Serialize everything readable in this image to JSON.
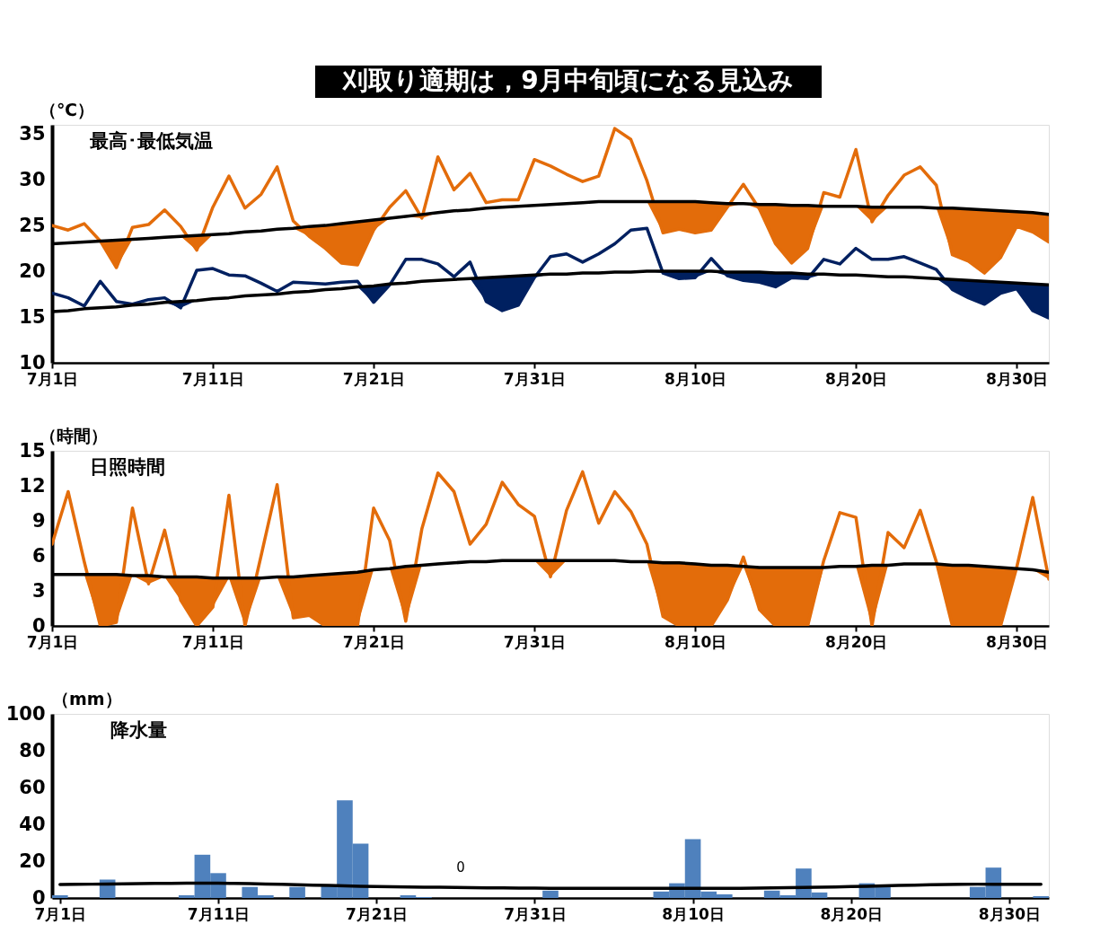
{
  "chart_data": [
    {
      "type": "line",
      "title": "刈取り適期は，9月中旬頃になる見込み",
      "subtitle": "最高･最低気温",
      "ylabel": "（℃）",
      "categories": [
        "7月1日",
        null,
        null,
        null,
        null,
        null,
        null,
        null,
        null,
        null,
        "7月11日",
        null,
        null,
        null,
        null,
        null,
        null,
        null,
        null,
        null,
        "7月21日",
        null,
        null,
        null,
        null,
        null,
        null,
        null,
        null,
        null,
        "7月31日",
        null,
        null,
        null,
        null,
        null,
        null,
        null,
        null,
        null,
        "8月10日",
        null,
        null,
        null,
        null,
        null,
        null,
        null,
        null,
        null,
        "8月20日",
        null,
        null,
        null,
        null,
        null,
        null,
        null,
        null,
        null,
        "8月30日",
        null,
        null
      ],
      "series": [
        {
          "color": "#e36c0a",
          "values": [
            25.0,
            24.5,
            25.2,
            23.3,
            20.4,
            24.8,
            25.1,
            26.7,
            24.9,
            22.3,
            27.0,
            30.4,
            26.9,
            28.4,
            31.4,
            25.5,
            23.8,
            22.5,
            20.9,
            20.7,
            24.5,
            27.0,
            28.8,
            25.8,
            32.5,
            28.9,
            30.7,
            27.5,
            27.8,
            27.8,
            32.2,
            31.5,
            30.6,
            29.8,
            30.4,
            35.6,
            34.4,
            29.9,
            24.2,
            24.6,
            24.2,
            24.5,
            27.0,
            29.5,
            26.8,
            23.0,
            20.9,
            22.5,
            28.6,
            28.1,
            33.3,
            25.4,
            28.3,
            30.5,
            31.4,
            29.4,
            21.8,
            21.1,
            19.8,
            21.5,
            24.9,
            24.3,
            23.2
          ],
          "lower": [
            23.0,
            23.1,
            23.2,
            23.3,
            20.4,
            23.5,
            23.6,
            23.7,
            23.8,
            22.3,
            24.0,
            24.1,
            24.3,
            24.4,
            24.6,
            24.7,
            23.8,
            22.5,
            20.9,
            20.7,
            24.5,
            25.8,
            26.0,
            25.8,
            26.4,
            26.6,
            26.7,
            26.9,
            27.0,
            27.1,
            27.2,
            27.3,
            27.4,
            27.5,
            27.6,
            27.6,
            27.6,
            27.6,
            24.2,
            24.6,
            24.2,
            24.5,
            27.0,
            27.4,
            26.8,
            23.0,
            20.9,
            22.5,
            27.1,
            27.1,
            27.1,
            25.4,
            27.0,
            27.0,
            27.0,
            26.9,
            21.8,
            21.1,
            19.8,
            21.5,
            24.9,
            24.3,
            23.2
          ],
          "upper": [
            23.0,
            23.1,
            23.2,
            23.3,
            23.4,
            23.5,
            23.6,
            23.7,
            23.8,
            23.9,
            24.0,
            24.1,
            24.3,
            24.4,
            24.6,
            24.7,
            24.9,
            25.0,
            25.2,
            25.4,
            25.6,
            25.8,
            26.0,
            26.2,
            26.4,
            26.6,
            26.7,
            26.9,
            27.0,
            27.1,
            27.2,
            27.3,
            27.4,
            27.5,
            27.6,
            27.6,
            27.6,
            27.6,
            27.6,
            27.6,
            27.6,
            27.5,
            27.4,
            27.4,
            27.3,
            27.3,
            27.2,
            27.2,
            27.1,
            27.1,
            27.1,
            27.0,
            27.0,
            27.0,
            27.0,
            26.9,
            26.9,
            26.8,
            26.7,
            26.6,
            26.5,
            26.4,
            26.2
          ]
        },
        {
          "color": "#000000",
          "values": [
            23.0,
            23.1,
            23.2,
            23.3,
            23.4,
            23.5,
            23.6,
            23.7,
            23.8,
            23.9,
            24.0,
            24.1,
            24.3,
            24.4,
            24.6,
            24.7,
            24.9,
            25.0,
            25.2,
            25.4,
            25.6,
            25.8,
            26.0,
            26.2,
            26.4,
            26.6,
            26.7,
            26.9,
            27.0,
            27.1,
            27.2,
            27.3,
            27.4,
            27.5,
            27.6,
            27.6,
            27.6,
            27.6,
            27.6,
            27.6,
            27.6,
            27.5,
            27.4,
            27.4,
            27.3,
            27.3,
            27.2,
            27.2,
            27.1,
            27.1,
            27.1,
            27.0,
            27.0,
            27.0,
            27.0,
            26.9,
            26.9,
            26.8,
            26.7,
            26.6,
            26.5,
            26.4,
            26.2
          ]
        },
        {
          "color": "#002060",
          "values": [
            17.6,
            17.1,
            16.2,
            18.9,
            16.7,
            16.4,
            16.9,
            17.1,
            16.0,
            20.1,
            20.3,
            19.6,
            19.5,
            18.7,
            17.8,
            18.8,
            18.7,
            18.6,
            18.8,
            18.9,
            16.6,
            18.5,
            21.3,
            21.3,
            20.8,
            19.4,
            21.0,
            16.7,
            15.7,
            16.3,
            19.3,
            21.6,
            21.9,
            21.0,
            21.9,
            23.0,
            24.5,
            24.7,
            19.8,
            19.2,
            19.3,
            21.4,
            19.5,
            19.0,
            18.8,
            18.3,
            19.3,
            19.2,
            21.3,
            20.8,
            22.5,
            21.3,
            21.3,
            21.6,
            20.9,
            20.2,
            18.0,
            17.1,
            16.4,
            17.6,
            18.1,
            15.7,
            14.9
          ],
          "lower": [
            15.6,
            15.7,
            15.9,
            16.0,
            16.1,
            16.3,
            16.4,
            16.6,
            16.0,
            16.8,
            17.0,
            17.1,
            17.3,
            17.4,
            17.5,
            17.7,
            17.8,
            18.0,
            18.1,
            18.3,
            16.6,
            18.5,
            18.7,
            18.9,
            19.0,
            19.1,
            19.2,
            16.7,
            15.7,
            16.3,
            19.3,
            19.7,
            19.7,
            19.8,
            19.8,
            19.9,
            19.9,
            20.0,
            19.8,
            19.2,
            19.3,
            20.0,
            19.5,
            19.0,
            18.8,
            18.3,
            19.3,
            19.2,
            19.7,
            19.6,
            19.6,
            19.5,
            19.4,
            19.4,
            19.3,
            19.2,
            18.0,
            17.1,
            16.4,
            17.6,
            18.1,
            15.7,
            14.9
          ],
          "upper": [
            15.6,
            15.7,
            15.9,
            16.0,
            16.1,
            16.3,
            16.4,
            16.6,
            16.7,
            16.8,
            17.0,
            17.1,
            17.3,
            17.4,
            17.5,
            17.7,
            17.8,
            18.0,
            18.1,
            18.3,
            18.4,
            18.6,
            18.7,
            18.9,
            19.0,
            19.1,
            19.2,
            19.3,
            19.4,
            19.5,
            19.6,
            19.7,
            19.7,
            19.8,
            19.8,
            19.9,
            19.9,
            20.0,
            20.0,
            20.0,
            20.0,
            20.0,
            19.9,
            19.9,
            19.9,
            19.8,
            19.8,
            19.7,
            19.7,
            19.6,
            19.6,
            19.5,
            19.4,
            19.4,
            19.3,
            19.2,
            19.1,
            19.0,
            18.9,
            18.8,
            18.7,
            18.6,
            18.5
          ]
        },
        {
          "color": "#000000",
          "values": [
            15.6,
            15.7,
            15.9,
            16.0,
            16.1,
            16.3,
            16.4,
            16.6,
            16.7,
            16.8,
            17.0,
            17.1,
            17.3,
            17.4,
            17.5,
            17.7,
            17.8,
            18.0,
            18.1,
            18.3,
            18.4,
            18.6,
            18.7,
            18.9,
            19.0,
            19.1,
            19.2,
            19.3,
            19.4,
            19.5,
            19.6,
            19.7,
            19.7,
            19.8,
            19.8,
            19.9,
            19.9,
            20.0,
            20.0,
            20.0,
            20.0,
            20.0,
            19.9,
            19.9,
            19.9,
            19.8,
            19.8,
            19.7,
            19.7,
            19.6,
            19.6,
            19.5,
            19.4,
            19.4,
            19.3,
            19.2,
            19.1,
            19.0,
            18.9,
            18.8,
            18.7,
            18.6,
            18.5
          ]
        }
      ],
      "ylim": [
        10,
        36
      ],
      "yticks": [
        10,
        15,
        20,
        25,
        30,
        35
      ],
      "grid": false,
      "marker": "none",
      "line_style": "solid"
    },
    {
      "type": "line",
      "title": "日照時間",
      "ylabel": "（時間）",
      "categories": [
        "7月1日",
        null,
        null,
        null,
        null,
        null,
        null,
        null,
        null,
        null,
        "7月11日",
        null,
        null,
        null,
        null,
        null,
        null,
        null,
        null,
        null,
        "7月21日",
        null,
        null,
        null,
        null,
        null,
        null,
        null,
        null,
        null,
        "7月31日",
        null,
        null,
        null,
        null,
        null,
        null,
        null,
        null,
        null,
        "8月10日",
        null,
        null,
        null,
        null,
        null,
        null,
        null,
        null,
        null,
        "8月20日",
        null,
        null,
        null,
        null,
        null,
        null,
        null,
        null,
        null,
        "8月30日",
        null,
        null
      ],
      "series": [
        {
          "color": "#e36c0a",
          "values": [
            7.0,
            11.5,
            5.5,
            0.0,
            0.3,
            10.1,
            3.6,
            8.2,
            2.2,
            0.0,
            1.6,
            11.2,
            0.0,
            6.0,
            12.1,
            0.7,
            0.9,
            0.0,
            0.0,
            0.0,
            10.1,
            7.3,
            0.4,
            8.3,
            13.1,
            11.5,
            7.0,
            8.7,
            12.3,
            10.4,
            9.4,
            4.2,
            9.9,
            13.2,
            8.8,
            11.5,
            9.8,
            7.0,
            0.8,
            0.0,
            0.0,
            0.0,
            2.2,
            5.9,
            1.4,
            0.0,
            0.0,
            0.0,
            5.6,
            9.7,
            9.3,
            0.0,
            8.0,
            6.7,
            9.9,
            5.5,
            0.0,
            0.0,
            0.0,
            0.0,
            5.0,
            11.0,
            4.0
          ],
          "lower": [
            4.4,
            4.4,
            4.4,
            0.0,
            0.3,
            4.3,
            3.6,
            4.2,
            2.2,
            0.0,
            1.6,
            4.1,
            0.0,
            4.1,
            4.2,
            0.7,
            0.9,
            0.0,
            0.0,
            0.0,
            4.8,
            4.9,
            0.4,
            5.2,
            5.3,
            5.4,
            5.5,
            5.5,
            5.6,
            5.6,
            5.6,
            4.2,
            5.6,
            5.6,
            5.6,
            5.6,
            5.5,
            5.5,
            0.8,
            0.0,
            0.0,
            0.0,
            2.2,
            5.1,
            1.4,
            0.0,
            0.0,
            0.0,
            5.0,
            5.1,
            5.1,
            0.0,
            5.2,
            5.3,
            5.3,
            5.3,
            0.0,
            0.0,
            0.0,
            0.0,
            4.9,
            4.8,
            4.0
          ],
          "upper": [
            4.4,
            4.4,
            4.4,
            4.4,
            4.4,
            4.3,
            4.3,
            4.2,
            4.2,
            4.2,
            4.1,
            4.1,
            4.1,
            4.1,
            4.2,
            4.2,
            4.3,
            4.4,
            4.5,
            4.6,
            4.8,
            4.9,
            5.1,
            5.2,
            5.3,
            5.4,
            5.5,
            5.5,
            5.6,
            5.6,
            5.6,
            5.6,
            5.6,
            5.6,
            5.6,
            5.6,
            5.5,
            5.5,
            5.4,
            5.4,
            5.3,
            5.2,
            5.2,
            5.1,
            5.0,
            5.0,
            5.0,
            5.0,
            5.0,
            5.1,
            5.1,
            5.2,
            5.2,
            5.3,
            5.3,
            5.3,
            5.2,
            5.2,
            5.1,
            5.0,
            4.9,
            4.8,
            4.6
          ]
        },
        {
          "color": "#000000",
          "values": [
            4.4,
            4.4,
            4.4,
            4.4,
            4.4,
            4.3,
            4.3,
            4.2,
            4.2,
            4.2,
            4.1,
            4.1,
            4.1,
            4.1,
            4.2,
            4.2,
            4.3,
            4.4,
            4.5,
            4.6,
            4.8,
            4.9,
            5.1,
            5.2,
            5.3,
            5.4,
            5.5,
            5.5,
            5.6,
            5.6,
            5.6,
            5.6,
            5.6,
            5.6,
            5.6,
            5.6,
            5.5,
            5.5,
            5.4,
            5.4,
            5.3,
            5.2,
            5.2,
            5.1,
            5.0,
            5.0,
            5.0,
            5.0,
            5.0,
            5.1,
            5.1,
            5.2,
            5.2,
            5.3,
            5.3,
            5.3,
            5.2,
            5.2,
            5.1,
            5.0,
            4.9,
            4.8,
            4.6
          ]
        }
      ],
      "ylim": [
        0,
        15
      ],
      "yticks": [
        0,
        3,
        6,
        9,
        12,
        15
      ],
      "grid": false,
      "marker": "none",
      "line_style": "solid"
    },
    {
      "type": "bar",
      "title": "降水量",
      "ylabel": "（mm）",
      "annotations": [
        "0"
      ],
      "categories": [
        "7月1日",
        null,
        null,
        null,
        null,
        null,
        null,
        null,
        null,
        null,
        "7月11日",
        null,
        null,
        null,
        null,
        null,
        null,
        null,
        null,
        null,
        "7月21日",
        null,
        null,
        null,
        null,
        null,
        null,
        null,
        null,
        null,
        "7月31日",
        null,
        null,
        null,
        null,
        null,
        null,
        null,
        null,
        null,
        "8月10日",
        null,
        null,
        null,
        null,
        null,
        null,
        null,
        null,
        null,
        "8月20日",
        null,
        null,
        null,
        null,
        null,
        null,
        null,
        null,
        null,
        "8月30日",
        null,
        null
      ],
      "series": [
        {
          "color": "#4f81bd",
          "values": [
            1.5,
            0,
            0,
            10,
            0,
            0,
            0,
            0,
            1.5,
            23.5,
            13.5,
            0,
            6,
            1.5,
            0,
            6,
            0,
            7,
            53,
            29.5,
            0,
            0,
            1.5,
            0.5,
            0,
            0,
            0,
            0,
            0,
            0,
            0,
            4,
            0,
            0,
            0,
            0,
            0,
            0,
            3.5,
            8,
            32,
            3.5,
            2,
            0,
            0,
            4,
            1.5,
            16,
            3,
            0,
            0,
            8,
            7,
            0,
            0,
            0,
            0,
            0,
            6,
            16.5,
            0,
            0,
            1
          ]
        },
        {
          "type": "line",
          "color": "#000000",
          "values": [
            7.3,
            7.4,
            7.5,
            7.6,
            7.7,
            7.8,
            7.9,
            7.9,
            8.0,
            8.0,
            8.0,
            7.9,
            7.8,
            7.6,
            7.4,
            7.2,
            7.0,
            6.8,
            6.6,
            6.4,
            6.2,
            6.1,
            6.0,
            5.9,
            5.8,
            5.7,
            5.6,
            5.5,
            5.5,
            5.4,
            5.4,
            5.3,
            5.2,
            5.2,
            5.2,
            5.2,
            5.2,
            5.2,
            5.2,
            5.2,
            5.3,
            5.3,
            5.3,
            5.3,
            5.4,
            5.5,
            5.6,
            5.7,
            5.9,
            6.0,
            6.2,
            6.4,
            6.6,
            6.8,
            7.0,
            7.2,
            7.3,
            7.4,
            7.5,
            7.5,
            7.5,
            7.5,
            7.4
          ]
        }
      ],
      "ylim": [
        0,
        100
      ],
      "yticks": [
        0,
        20,
        40,
        60,
        80,
        100
      ],
      "grid": false,
      "marker": "none",
      "line_style": "solid"
    }
  ]
}
